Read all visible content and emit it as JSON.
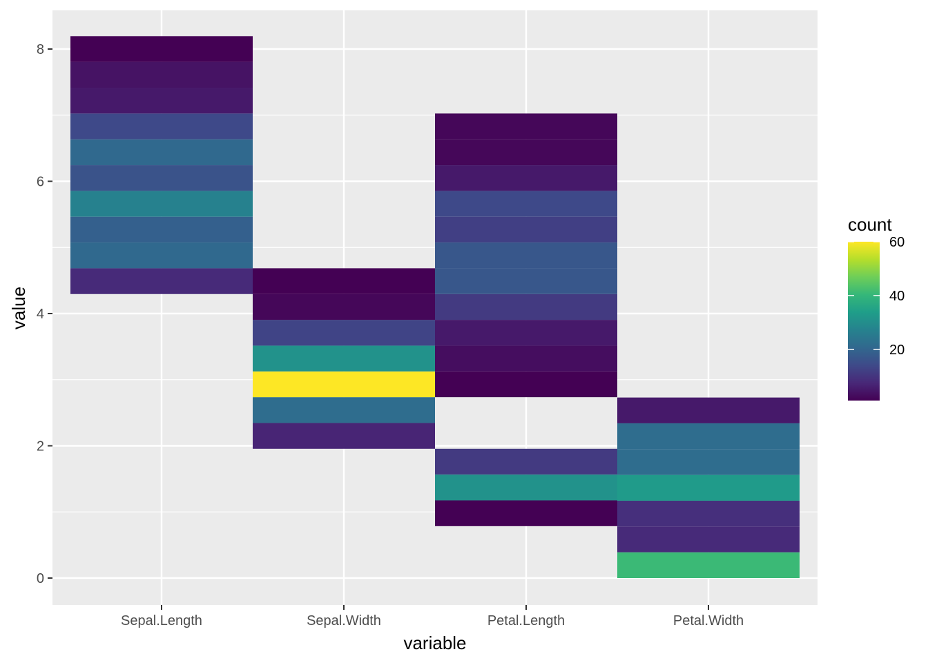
{
  "chart_data": {
    "type": "heatmap",
    "xlabel": "variable",
    "ylabel": "value",
    "categories": [
      "Sepal.Length",
      "Sepal.Width",
      "Petal.Length",
      "Petal.Width"
    ],
    "ylim": [
      -0.4,
      8.6
    ],
    "y_ticks": [
      0,
      2,
      4,
      6,
      8
    ],
    "bin_width": 0.39,
    "legend": {
      "title": "count",
      "position": "right",
      "range": [
        1,
        60
      ],
      "ticks": [
        20,
        40,
        60
      ],
      "colors": [
        "#440154",
        "#482878",
        "#3e4a89",
        "#31688e",
        "#26828e",
        "#1f9e89",
        "#35b779",
        "#6ece58",
        "#b5de2b",
        "#fde725"
      ]
    },
    "series": [
      {
        "variable": "Sepal.Length",
        "bins": [
          {
            "y": 4.49,
            "count": 8
          },
          {
            "y": 4.88,
            "count": 21
          },
          {
            "y": 5.27,
            "count": 19
          },
          {
            "y": 5.66,
            "count": 27
          },
          {
            "y": 6.05,
            "count": 16
          },
          {
            "y": 6.44,
            "count": 21
          },
          {
            "y": 6.83,
            "count": 14
          },
          {
            "y": 7.22,
            "count": 5
          },
          {
            "y": 7.61,
            "count": 4
          },
          {
            "y": 8.0,
            "count": 1
          }
        ]
      },
      {
        "variable": "Sepal.Width",
        "bins": [
          {
            "y": 2.15,
            "count": 7
          },
          {
            "y": 2.54,
            "count": 22
          },
          {
            "y": 2.93,
            "count": 60
          },
          {
            "y": 3.32,
            "count": 31
          },
          {
            "y": 3.71,
            "count": 13
          },
          {
            "y": 4.1,
            "count": 2
          },
          {
            "y": 4.49,
            "count": 1
          }
        ]
      },
      {
        "variable": "Petal.Length",
        "bins": [
          {
            "y": 0.98,
            "count": 1
          },
          {
            "y": 1.37,
            "count": 31
          },
          {
            "y": 1.76,
            "count": 11
          },
          {
            "y": 2.93,
            "count": 1
          },
          {
            "y": 3.32,
            "count": 3
          },
          {
            "y": 3.71,
            "count": 5
          },
          {
            "y": 4.1,
            "count": 11
          },
          {
            "y": 4.49,
            "count": 17
          },
          {
            "y": 4.88,
            "count": 17
          },
          {
            "y": 5.27,
            "count": 12
          },
          {
            "y": 5.66,
            "count": 14
          },
          {
            "y": 6.05,
            "count": 5
          },
          {
            "y": 6.44,
            "count": 2
          },
          {
            "y": 6.83,
            "count": 2
          }
        ]
      },
      {
        "variable": "Petal.Width",
        "bins": [
          {
            "y": 0.195,
            "count": 41
          },
          {
            "y": 0.585,
            "count": 8
          },
          {
            "y": 0.975,
            "count": 9
          },
          {
            "y": 1.365,
            "count": 33
          },
          {
            "y": 1.755,
            "count": 22
          },
          {
            "y": 2.145,
            "count": 22
          },
          {
            "y": 2.535,
            "count": 5
          }
        ]
      }
    ]
  }
}
